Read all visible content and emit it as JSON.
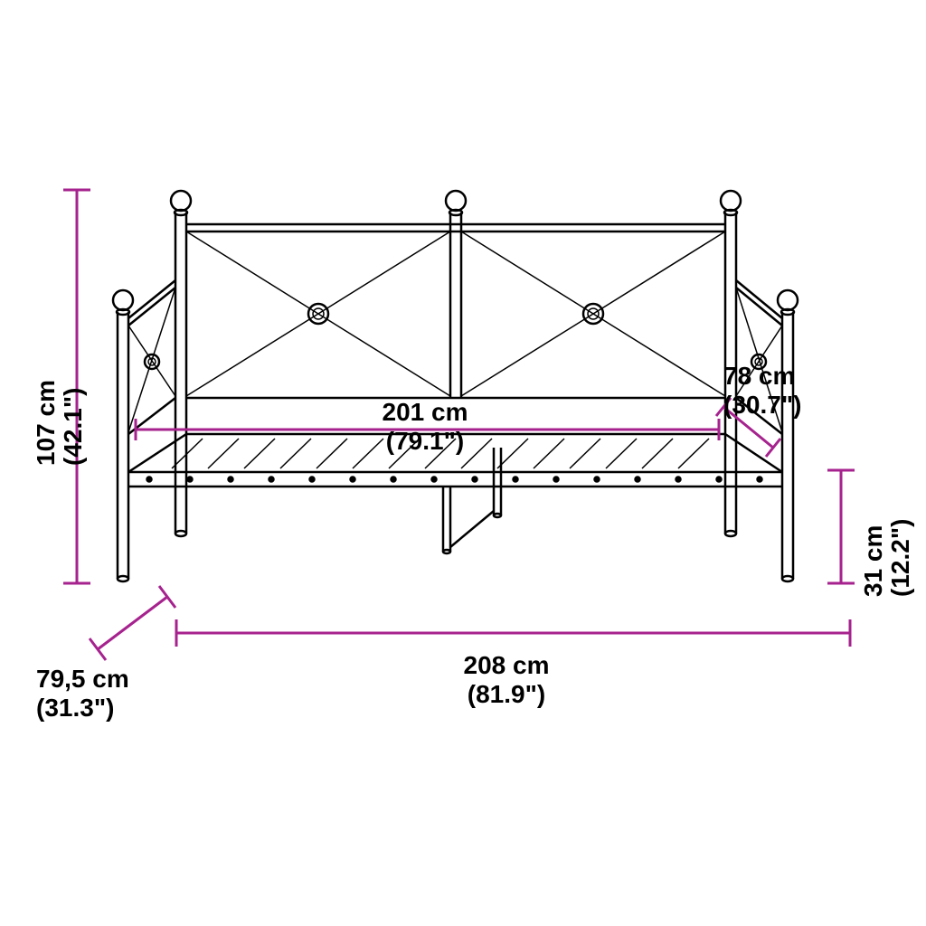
{
  "diagram": {
    "type": "technical-dimension-drawing",
    "background_color": "#ffffff",
    "line_color": "#000000",
    "dimension_color": "#a6228e",
    "font_size": 28,
    "dimensions": {
      "height_total": "107 cm (42.1\")",
      "depth": "79,5 cm (31.3\")",
      "width_total": "208 cm (81.9\")",
      "width_inner": "201 cm (79.1\")",
      "depth_inner": "78 cm (30.7\")",
      "bed_height": "31 cm (12.2\")"
    }
  }
}
